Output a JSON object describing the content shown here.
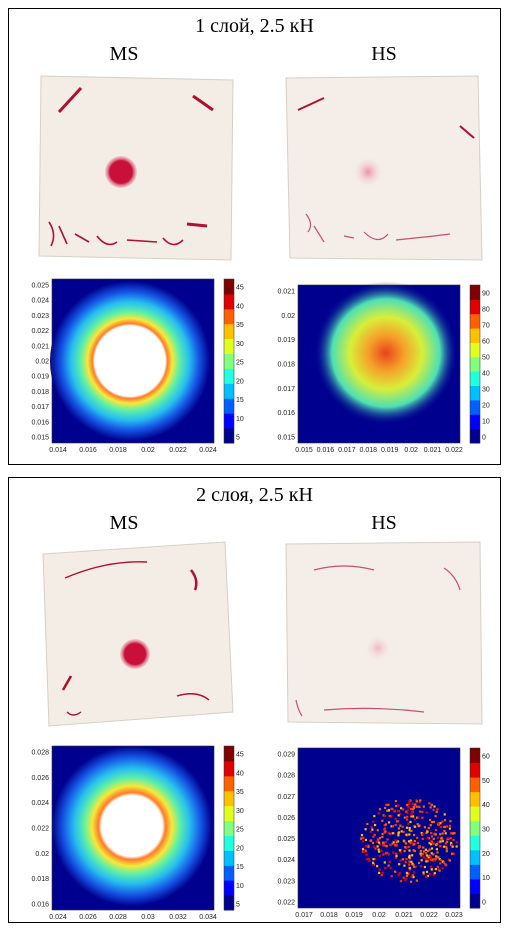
{
  "panels": [
    {
      "title": "1 слой, 2.5 кН",
      "left_label": "MS",
      "right_label": "HS",
      "ms_plot": {
        "x_ticks": [
          "0.014",
          "0.016",
          "0.018",
          "0.02",
          "0.022",
          "0.024"
        ],
        "y_ticks": [
          "0.025",
          "0.024",
          "0.023",
          "0.022",
          "0.021",
          "0.02",
          "0.019",
          "0.018",
          "0.017",
          "0.016",
          "0.015"
        ],
        "cbar_ticks": [
          "45",
          "40",
          "35",
          "30",
          "25",
          "20",
          "15",
          "10",
          "5"
        ]
      },
      "hs_plot": {
        "x_ticks": [
          "0.015",
          "0.016",
          "0.017",
          "0.018",
          "0.019",
          "0.02",
          "0.021",
          "0.022"
        ],
        "y_ticks": [
          "0.021",
          "0.02",
          "0.019",
          "0.018",
          "0.017",
          "0.016",
          "0.015"
        ],
        "cbar_ticks": [
          "90",
          "80",
          "70",
          "60",
          "50",
          "40",
          "30",
          "20",
          "10",
          "0"
        ]
      }
    },
    {
      "title": "2 слоя, 2.5 кН",
      "left_label": "MS",
      "right_label": "HS",
      "ms_plot": {
        "x_ticks": [
          "0.024",
          "0.026",
          "0.028",
          "0.03",
          "0.032",
          "0.034"
        ],
        "y_ticks": [
          "0.028",
          "0.026",
          "0.024",
          "0.022",
          "0.02",
          "0.018",
          "0.016"
        ],
        "cbar_ticks": [
          "45",
          "40",
          "35",
          "30",
          "25",
          "20",
          "15",
          "10",
          "5"
        ]
      },
      "hs_plot": {
        "x_ticks": [
          "0.017",
          "0.018",
          "0.019",
          "0.02",
          "0.021",
          "0.022",
          "0.023"
        ],
        "y_ticks": [
          "0.029",
          "0.028",
          "0.027",
          "0.026",
          "0.025",
          "0.024",
          "0.023",
          "0.022"
        ],
        "cbar_ticks": [
          "60",
          "50",
          "40",
          "30",
          "20",
          "10",
          "0"
        ]
      }
    }
  ],
  "colors": {
    "background": "#ffffff",
    "border": "#000000",
    "plot_bg": "#00008f",
    "paper": "#f3ece4",
    "ms_spot": "#c8103a",
    "hs_spot": "#f2a7bb",
    "marker_ink": "#b01030"
  }
}
